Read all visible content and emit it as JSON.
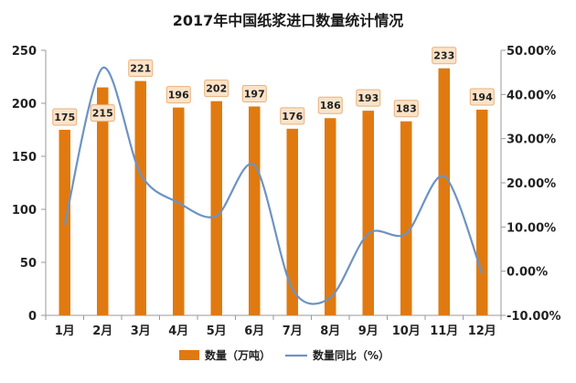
{
  "chart_data": {
    "type": "bar",
    "title": "2017年中国纸浆进口数量统计情况",
    "categories": [
      "1月",
      "2月",
      "3月",
      "4月",
      "5月",
      "6月",
      "7月",
      "8月",
      "9月",
      "10月",
      "11月",
      "12月"
    ],
    "series": [
      {
        "name": "数量（万吨）",
        "type": "bar",
        "axis": "left",
        "values": [
          175,
          215,
          221,
          196,
          202,
          197,
          176,
          186,
          193,
          183,
          233,
          194
        ]
      },
      {
        "name": "数量同比（%）",
        "type": "line",
        "axis": "right",
        "values": [
          10.5,
          46.0,
          22.0,
          15.5,
          12.5,
          24.0,
          -4.0,
          -6.0,
          8.5,
          8.5,
          21.5,
          -0.5
        ]
      }
    ],
    "y_left": {
      "min": 0,
      "max": 250,
      "ticks": [
        "0",
        "50",
        "100",
        "150",
        "200",
        "250"
      ]
    },
    "y_right": {
      "min": -10,
      "max": 50,
      "ticks": [
        "-10.00%",
        "0.00%",
        "10.00%",
        "20.00%",
        "30.00%",
        "40.00%",
        "50.00%"
      ]
    },
    "bar_labels": [
      "175",
      "215",
      "221",
      "196",
      "202",
      "197",
      "176",
      "186",
      "193",
      "183",
      "233",
      "194"
    ],
    "colors": {
      "bar": "#E07A10",
      "line": "#6C93C4",
      "label_bg": "#FBE3C8",
      "label_border": "#E9B07A",
      "axis": "#9a9a9a"
    },
    "legend": {
      "position": "bottom"
    }
  }
}
